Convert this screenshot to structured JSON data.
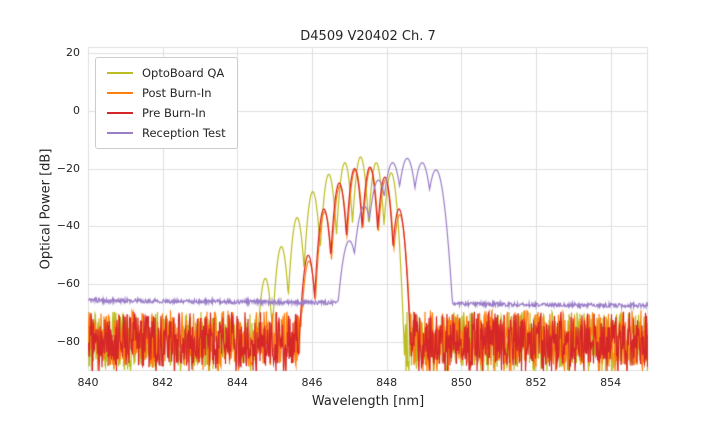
{
  "chart_data": {
    "type": "line",
    "title": "D4509 V20402 Ch. 7",
    "xlabel": "Wavelength [nm]",
    "ylabel": "Optical Power [dB]",
    "xlim": [
      840,
      855
    ],
    "ylim": [
      -90,
      22
    ],
    "xticks": [
      840,
      842,
      844,
      846,
      848,
      850,
      852,
      854
    ],
    "yticks": [
      20,
      0,
      -20,
      -40,
      -60,
      -80
    ],
    "grid": true,
    "grid_color": "#e0e0e0",
    "text_color": "#262626",
    "legend_position": "upper-left",
    "series": [
      {
        "name": "OptoBoard QA",
        "color": "#bcbd22",
        "noise_floor_db": -79,
        "noise_amplitude_db": 9.5,
        "noise_style": "spiky",
        "mode_width_nm": 0.045,
        "modes": [
          [
            844.75,
            -58
          ],
          [
            845.18,
            -47
          ],
          [
            845.6,
            -37
          ],
          [
            846.02,
            -28
          ],
          [
            846.45,
            -22
          ],
          [
            846.88,
            -18
          ],
          [
            847.3,
            -16
          ],
          [
            847.72,
            -18
          ],
          [
            848.12,
            -21.5
          ]
        ]
      },
      {
        "name": "Post Burn-In",
        "color": "#ff7f0e",
        "noise_floor_db": -78.5,
        "noise_amplitude_db": 9.5,
        "noise_style": "spiky",
        "mode_width_nm": 0.045,
        "modes": [
          [
            845.92,
            -52
          ],
          [
            846.34,
            -35
          ],
          [
            846.75,
            -26
          ],
          [
            847.16,
            -20.5
          ],
          [
            847.57,
            -20
          ],
          [
            847.97,
            -24
          ],
          [
            848.35,
            -36
          ]
        ]
      },
      {
        "name": "Pre Burn-In",
        "color": "#d62728",
        "noise_floor_db": -79,
        "noise_amplitude_db": 9.5,
        "noise_style": "spiky",
        "mode_width_nm": 0.045,
        "modes": [
          [
            845.9,
            -50
          ],
          [
            846.32,
            -34
          ],
          [
            846.73,
            -25
          ],
          [
            847.14,
            -20
          ],
          [
            847.55,
            -19.5
          ],
          [
            847.95,
            -23
          ],
          [
            848.33,
            -34
          ]
        ]
      },
      {
        "name": "Reception Test",
        "color": "#9b7ec8",
        "noise_floor_db": -65.6,
        "noise_amplitude_db": 0.7,
        "noise_slope_db_per_nm": -0.12,
        "noise_style": "smooth",
        "mode_width_nm": 0.065,
        "modes": [
          [
            847.0,
            -45
          ],
          [
            847.4,
            -33
          ],
          [
            847.78,
            -24
          ],
          [
            848.16,
            -18
          ],
          [
            848.55,
            -16.5
          ],
          [
            848.95,
            -18
          ],
          [
            849.32,
            -20.5
          ]
        ]
      }
    ]
  }
}
